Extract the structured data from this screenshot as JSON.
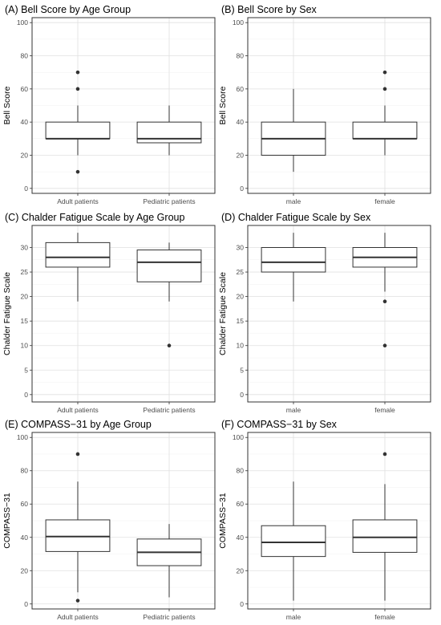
{
  "chart_data": [
    {
      "type": "box",
      "title": "(A) Bell Score by Age Group",
      "ylabel": "Bell Score",
      "ylim": [
        -3,
        103
      ],
      "yticks": [
        0,
        20,
        40,
        60,
        80,
        100
      ],
      "categories": [
        "Adult patients",
        "Pediatric patients"
      ],
      "boxes": [
        {
          "category": "Adult patients",
          "lower_whisker": 20,
          "q1": 30,
          "median": 30,
          "q3": 40,
          "upper_whisker": 50,
          "outliers": [
            10,
            60,
            70
          ]
        },
        {
          "category": "Pediatric patients",
          "lower_whisker": 20,
          "q1": 27.5,
          "median": 30,
          "q3": 40,
          "upper_whisker": 50,
          "outliers": []
        }
      ]
    },
    {
      "type": "box",
      "title": "(B) Bell Score by Sex",
      "ylabel": "Bell Score",
      "ylim": [
        -3,
        103
      ],
      "yticks": [
        0,
        20,
        40,
        60,
        80,
        100
      ],
      "categories": [
        "male",
        "female"
      ],
      "boxes": [
        {
          "category": "male",
          "lower_whisker": 10,
          "q1": 20,
          "median": 30,
          "q3": 40,
          "upper_whisker": 60,
          "outliers": []
        },
        {
          "category": "female",
          "lower_whisker": 20,
          "q1": 30,
          "median": 30,
          "q3": 40,
          "upper_whisker": 50,
          "outliers": [
            60,
            70
          ]
        }
      ]
    },
    {
      "type": "box",
      "title": "(C) Chalder Fatigue Scale by Age Group",
      "ylabel": "Chalder Fatigue Scale",
      "ylim": [
        -1.5,
        34.5
      ],
      "yticks": [
        0,
        5,
        10,
        15,
        20,
        25,
        30
      ],
      "categories": [
        "Adult patients",
        "Pediatric patients"
      ],
      "boxes": [
        {
          "category": "Adult patients",
          "lower_whisker": 19,
          "q1": 26,
          "median": 28,
          "q3": 31,
          "upper_whisker": 33,
          "outliers": []
        },
        {
          "category": "Pediatric patients",
          "lower_whisker": 19,
          "q1": 23,
          "median": 27,
          "q3": 29.5,
          "upper_whisker": 31,
          "outliers": [
            10
          ]
        }
      ]
    },
    {
      "type": "box",
      "title": "(D) Chalder Fatigue Scale by Sex",
      "ylabel": "Chalder Fatigue Scale",
      "ylim": [
        -1.5,
        34.5
      ],
      "yticks": [
        0,
        5,
        10,
        15,
        20,
        25,
        30
      ],
      "categories": [
        "male",
        "female"
      ],
      "boxes": [
        {
          "category": "male",
          "lower_whisker": 19,
          "q1": 25,
          "median": 27,
          "q3": 30,
          "upper_whisker": 33,
          "outliers": []
        },
        {
          "category": "female",
          "lower_whisker": 21,
          "q1": 26,
          "median": 28,
          "q3": 30,
          "upper_whisker": 33,
          "outliers": [
            10,
            19
          ]
        }
      ]
    },
    {
      "type": "box",
      "title": "(E) COMPASS−31 by Age Group",
      "ylabel": "COMPASS−31",
      "ylim": [
        -3,
        103
      ],
      "yticks": [
        0,
        20,
        40,
        60,
        80,
        100
      ],
      "categories": [
        "Adult patients",
        "Pediatric patients"
      ],
      "boxes": [
        {
          "category": "Adult patients",
          "lower_whisker": 7,
          "q1": 31.5,
          "median": 40.5,
          "q3": 50.5,
          "upper_whisker": 73.5,
          "outliers": [
            2,
            90
          ]
        },
        {
          "category": "Pediatric patients",
          "lower_whisker": 4,
          "q1": 23,
          "median": 31,
          "q3": 39,
          "upper_whisker": 48,
          "outliers": []
        }
      ]
    },
    {
      "type": "box",
      "title": "(F) COMPASS−31 by Sex",
      "ylabel": "COMPASS−31",
      "ylim": [
        -3,
        103
      ],
      "yticks": [
        0,
        20,
        40,
        60,
        80,
        100
      ],
      "categories": [
        "male",
        "female"
      ],
      "boxes": [
        {
          "category": "male",
          "lower_whisker": 2,
          "q1": 28.5,
          "median": 37,
          "q3": 47,
          "upper_whisker": 73.5,
          "outliers": []
        },
        {
          "category": "female",
          "lower_whisker": 2,
          "q1": 31,
          "median": 40,
          "q3": 50.5,
          "upper_whisker": 72,
          "outliers": [
            90
          ]
        }
      ]
    }
  ]
}
